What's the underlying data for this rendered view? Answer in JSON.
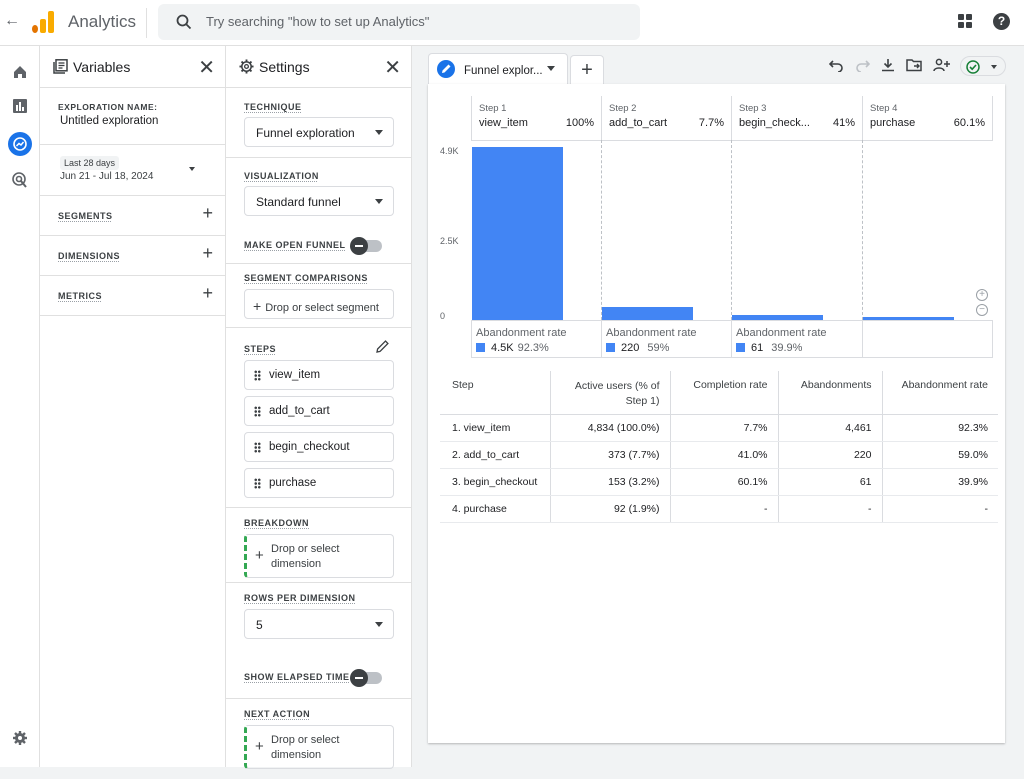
{
  "topbar": {
    "app_title": "Analytics",
    "search_placeholder": "Try searching \"how to set up Analytics\""
  },
  "variables": {
    "title": "Variables",
    "exploration_name_label": "EXPLORATION NAME:",
    "exploration_name": "Untitled exploration",
    "date_chip": "Last 28 days",
    "date_range": "Jun 21 - Jul 18, 2024",
    "segments_label": "SEGMENTS",
    "dimensions_label": "DIMENSIONS",
    "metrics_label": "METRICS"
  },
  "settings": {
    "title": "Settings",
    "technique_label": "TECHNIQUE",
    "technique_value": "Funnel exploration",
    "visualization_label": "VISUALIZATION",
    "visualization_value": "Standard funnel",
    "open_funnel_label": "MAKE OPEN FUNNEL",
    "segment_comparisons_label": "SEGMENT COMPARISONS",
    "segment_drop": "Drop or select segment",
    "steps_label": "STEPS",
    "steps": [
      "view_item",
      "add_to_cart",
      "begin_checkout",
      "purchase"
    ],
    "breakdown_label": "BREAKDOWN",
    "breakdown_drop": "Drop or select dimension",
    "rows_per_dimension_label": "ROWS PER DIMENSION",
    "rows_per_dimension_value": "5",
    "elapsed_time_label": "SHOW ELAPSED TIME",
    "next_action_label": "NEXT ACTION",
    "next_action_drop": "Drop or select dimension"
  },
  "tab": {
    "name": "Funnel explor..."
  },
  "chart_data": {
    "type": "bar",
    "categories": [
      "view_item",
      "add_to_cart",
      "begin_check...",
      "purchase"
    ],
    "step_labels": [
      "Step 1",
      "Step 2",
      "Step 3",
      "Step 4"
    ],
    "step_percent": [
      "100%",
      "7.7%",
      "41%",
      "60.1%"
    ],
    "values": [
      4834,
      373,
      153,
      92
    ],
    "yticks": [
      "4.9K",
      "2.5K",
      "0"
    ],
    "ylim": [
      0,
      4900
    ],
    "abandonment_title": "Abandonment rate",
    "abandonment": [
      {
        "count": "4.5K",
        "pct": "92.3%"
      },
      {
        "count": "220",
        "pct": "59%"
      },
      {
        "count": "61",
        "pct": "39.9%"
      }
    ],
    "color": "#4285f4"
  },
  "table": {
    "headers": [
      "Step",
      "Active users (% of Step 1)",
      "Completion rate",
      "Abandonments",
      "Abandonment rate"
    ],
    "rows": [
      [
        "1. view_item",
        "4,834 (100.0%)",
        "7.7%",
        "4,461",
        "92.3%"
      ],
      [
        "2. add_to_cart",
        "373 (7.7%)",
        "41.0%",
        "220",
        "59.0%"
      ],
      [
        "3. begin_checkout",
        "153 (3.2%)",
        "60.1%",
        "61",
        "39.9%"
      ],
      [
        "4. purchase",
        "92 (1.9%)",
        "-",
        "-",
        "-"
      ]
    ]
  }
}
